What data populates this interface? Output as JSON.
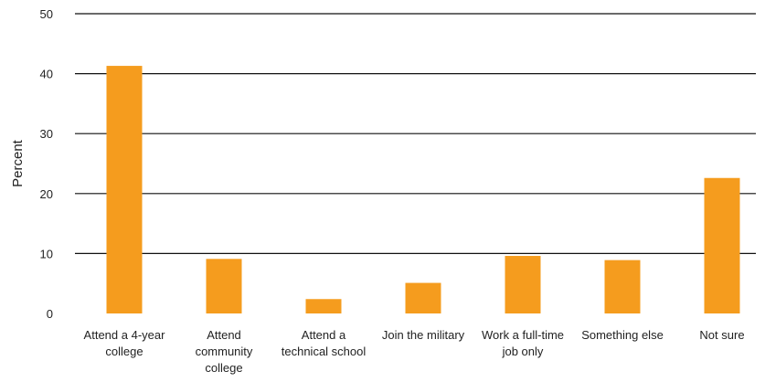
{
  "chart_data": {
    "type": "bar",
    "ylabel": "Percent",
    "xlabel": "",
    "ylim": [
      0,
      50
    ],
    "yticks": [
      0,
      10,
      20,
      30,
      40,
      50
    ],
    "grid": true,
    "bar_color": "#F59C1E",
    "categories": [
      [
        "Attend a 4-year",
        "college"
      ],
      [
        "Attend",
        "community",
        "college"
      ],
      [
        "Attend a",
        "technical school"
      ],
      [
        "Join the military"
      ],
      [
        "Work a full-time",
        "job only"
      ],
      [
        "Something else"
      ],
      [
        "Not sure"
      ]
    ],
    "values": [
      41.3,
      9.1,
      2.4,
      5.1,
      9.6,
      8.9,
      22.6
    ]
  }
}
